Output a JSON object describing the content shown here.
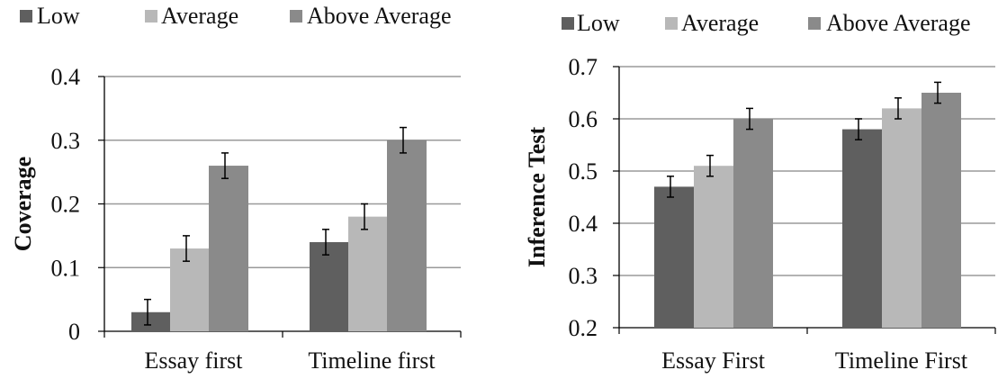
{
  "chart_data": [
    {
      "type": "bar",
      "ylabel": "Coverage",
      "xlabel": "",
      "ylim": [
        0,
        0.4
      ],
      "yticks": [
        "0",
        "0.1",
        "0.2",
        "0.3",
        "0.4"
      ],
      "grid": true,
      "legend_position": "top",
      "categories": [
        "Essay first",
        "Timeline first"
      ],
      "series": [
        {
          "name": "Low",
          "color": "#5f5f5f",
          "values": [
            0.03,
            0.14
          ],
          "error": [
            0.02,
            0.02
          ]
        },
        {
          "name": "Average",
          "color": "#b8b8b8",
          "values": [
            0.13,
            0.18
          ],
          "error": [
            0.02,
            0.02
          ]
        },
        {
          "name": "Above Average",
          "color": "#8a8a8a",
          "values": [
            0.26,
            0.3
          ],
          "error": [
            0.02,
            0.02
          ]
        }
      ]
    },
    {
      "type": "bar",
      "ylabel": "Inference Test",
      "xlabel": "",
      "ylim": [
        0.2,
        0.7
      ],
      "yticks": [
        "0.2",
        "0.3",
        "0.4",
        "0.5",
        "0.6",
        "0.7"
      ],
      "grid": true,
      "legend_position": "top",
      "categories": [
        "Essay First",
        "Timeline First"
      ],
      "series": [
        {
          "name": "Low",
          "color": "#5f5f5f",
          "values": [
            0.47,
            0.58
          ],
          "error": [
            0.02,
            0.02
          ]
        },
        {
          "name": "Average",
          "color": "#b8b8b8",
          "values": [
            0.51,
            0.62
          ],
          "error": [
            0.02,
            0.02
          ]
        },
        {
          "name": "Above Average",
          "color": "#8a8a8a",
          "values": [
            0.6,
            0.65
          ],
          "error": [
            0.02,
            0.02
          ]
        }
      ]
    }
  ]
}
